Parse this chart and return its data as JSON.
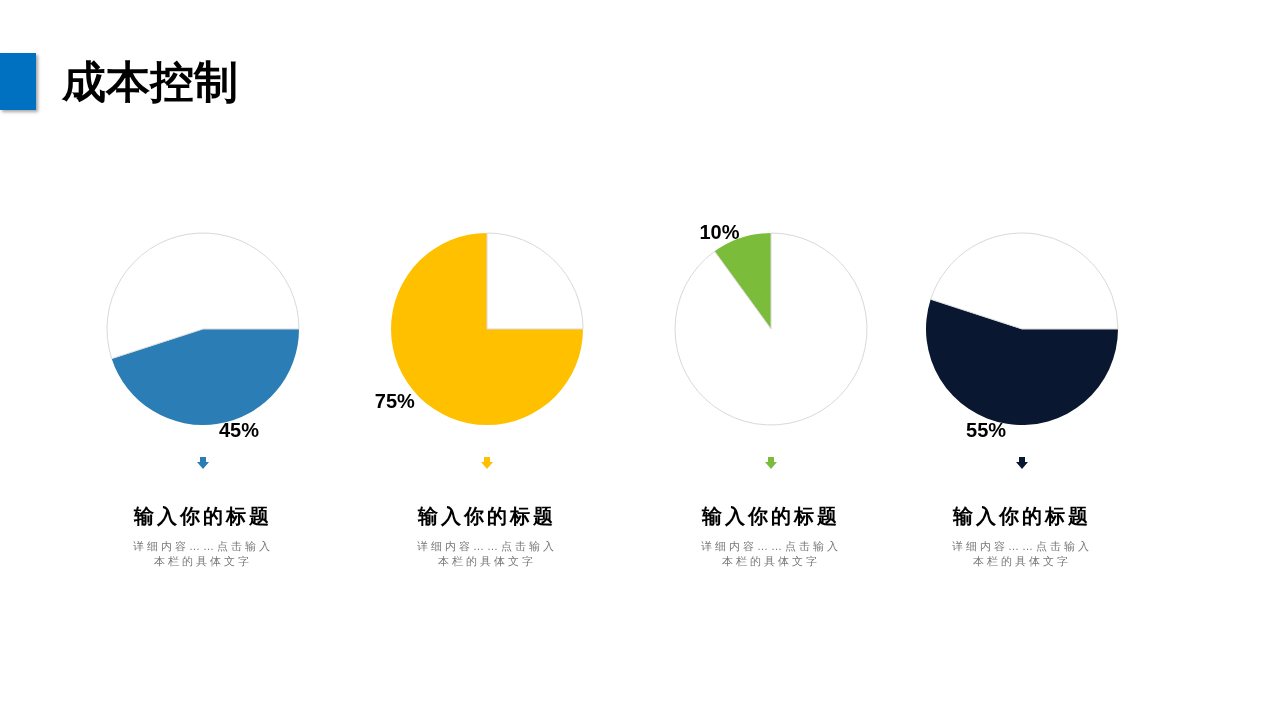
{
  "chart_data": [
    {
      "type": "other",
      "title": "成本控制"
    },
    {
      "type": "pie",
      "title": "输入你的标题",
      "annotations": [
        "详细内容……点击输入",
        "本栏的具体文字"
      ],
      "categories": [
        null,
        null
      ],
      "values": [
        45,
        55
      ],
      "colors": [
        "#2a7db5",
        "#ffffff"
      ],
      "value_labels": [
        "45%",
        null
      ]
    },
    {
      "type": "pie",
      "title": "输入你的标题",
      "annotations": [
        "详细内容……点击输入",
        "本栏的具体文字"
      ],
      "categories": [
        null,
        null
      ],
      "values": [
        75,
        25
      ],
      "colors": [
        "#ffc000",
        "#ffffff"
      ],
      "value_labels": [
        "75%",
        null
      ]
    },
    {
      "type": "pie",
      "title": "输入你的标题",
      "annotations": [
        "详细内容……点击输入",
        "本栏的具体文字"
      ],
      "categories": [
        null,
        null
      ],
      "values": [
        10,
        90
      ],
      "colors": [
        "#7bbd3a",
        "#ffffff"
      ],
      "value_labels": [
        "10%",
        null
      ]
    },
    {
      "type": "pie",
      "title": "输入你的标题",
      "annotations": [
        "详细内容……点击输入",
        "本栏的具体文字"
      ],
      "categories": [
        null,
        null
      ],
      "values": [
        55,
        45
      ],
      "colors": [
        "#0a1730",
        "#ffffff"
      ],
      "value_labels": [
        "55%",
        null
      ]
    }
  ]
}
